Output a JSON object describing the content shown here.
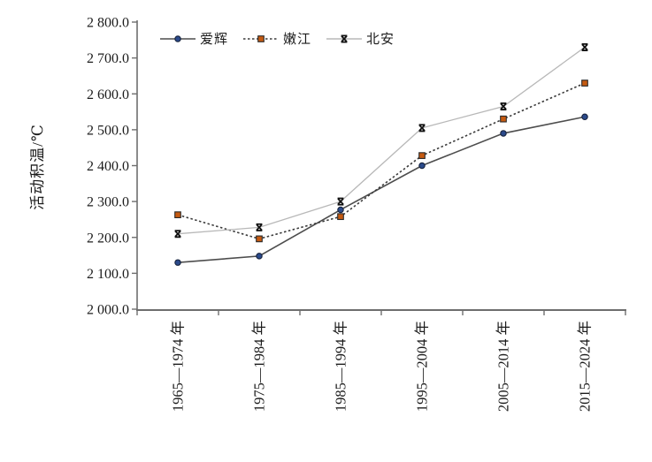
{
  "chart_data": {
    "type": "line",
    "title": "",
    "xlabel": "",
    "ylabel": "活动积温/℃",
    "ylim": [
      2000,
      2800
    ],
    "ytick_step": 100,
    "ytick_labels": [
      "2 000.0",
      "2 100.0",
      "2 200.0",
      "2 300.0",
      "2 400.0",
      "2 500.0",
      "2 600.0",
      "2 700.0",
      "2 800.0"
    ],
    "categories": [
      "1965—1974 年",
      "1975—1984 年",
      "1985—1994 年",
      "1995—2004 年",
      "2005—2014 年",
      "2015—2024 年"
    ],
    "series": [
      {
        "name": "爱辉",
        "values": [
          2130,
          2148,
          2277,
          2400,
          2490,
          2536
        ],
        "marker": "circle",
        "marker_color": "#2b4a8b",
        "marker_edge": "#17233d",
        "line_color": "#4d4d4d",
        "line_style": "solid"
      },
      {
        "name": "嫩江",
        "values": [
          2263,
          2196,
          2258,
          2428,
          2530,
          2630
        ],
        "marker": "square",
        "marker_color": "#c55a11",
        "marker_edge": "#2a2a2a",
        "line_color": "#3a3a3a",
        "line_style": "dotted"
      },
      {
        "name": "北安",
        "values": [
          2210,
          2228,
          2300,
          2505,
          2565,
          2730
        ],
        "marker": "xcap",
        "marker_color": "#111111",
        "marker_edge": "#111111",
        "line_color": "#b8b8b8",
        "line_style": "solid"
      }
    ],
    "legend_position": "top",
    "grid": false,
    "axis_color": "#6e6e6e"
  }
}
